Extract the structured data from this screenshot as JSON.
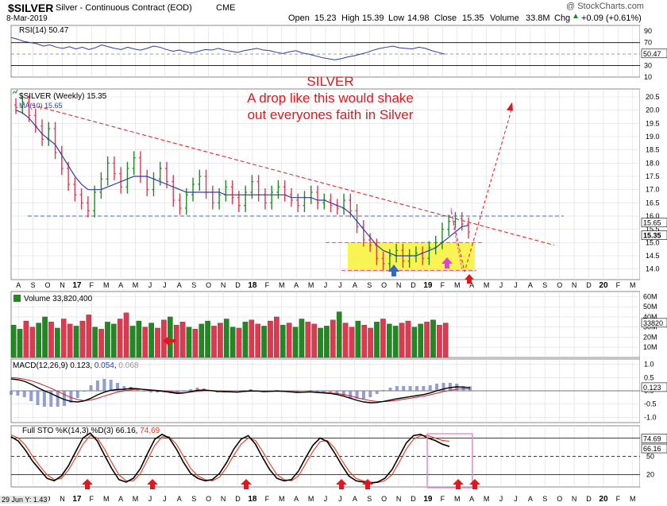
{
  "header": {
    "symbol": "$SILVER",
    "name": "Silver - Continuous Contract (EOD)",
    "exchange": "CME",
    "date": "8-Mar-2019",
    "copyright": "@ StockCharts.com",
    "open_label": "Open",
    "open": "15.23",
    "high_label": "High",
    "high": "15.39",
    "low_label": "Low",
    "low": "14.98",
    "close_label": "Close",
    "close": "15.35",
    "volume_label": "Volume",
    "volume": "33.8M",
    "chg_label": "Chg",
    "chg": "+0.09 (+0.61%)",
    "chg_arrow": "▲",
    "footer_date": "29 Jun Y: 1.43"
  },
  "annotation": {
    "line1": "SILVER",
    "line2": "A drop like this would shake",
    "line3": "out everyones faith in Silver",
    "color": "#e8141a"
  },
  "colors": {
    "up": "#1f8a1f",
    "down": "#e2374f",
    "ma": "#2a3ea8",
    "annotation_red": "#e8141a",
    "support_blue": "#3b6bcc",
    "highlight_yellow": "#f7f236",
    "magenta": "#e040e0",
    "grid": "#dcdcdc"
  },
  "chart_data": [
    {
      "panel": "rsi",
      "type": "line",
      "legend": "RSI(14) 50.47",
      "ylim": [
        10,
        100
      ],
      "yticks": [
        "90",
        "70",
        "50",
        "30",
        "10"
      ],
      "value_label": "50.47",
      "levels": [
        70,
        30
      ],
      "series": [
        {
          "values": [
            79,
            76,
            72,
            70,
            68,
            64,
            66,
            62,
            60,
            63,
            59,
            62,
            58,
            61,
            66,
            63,
            60,
            58,
            62,
            59,
            57,
            60,
            64,
            62,
            58,
            55,
            57,
            54,
            52,
            55,
            58,
            57,
            60,
            57,
            55,
            53,
            56,
            58,
            60,
            57,
            56,
            53,
            51,
            54,
            56,
            52,
            50,
            47,
            44,
            42,
            40,
            42,
            45,
            47,
            50,
            53,
            57,
            60,
            62,
            64,
            61,
            60,
            59,
            62,
            60,
            56,
            53,
            50
          ]
        }
      ]
    },
    {
      "panel": "price",
      "type": "ohlc",
      "legend_symbol": "$SILVER (Weekly) 15.35",
      "legend_ma": "MA(10) 15.65",
      "ylim": [
        13.6,
        20.8
      ],
      "yticks": [
        "20.5",
        "20.0",
        "19.5",
        "19.0",
        "18.5",
        "18.0",
        "17.5",
        "17.0",
        "16.5",
        "16.0",
        "15.5",
        "15.0",
        "14.5",
        "14.0"
      ],
      "price_labels": [
        "15.65",
        "15.35"
      ],
      "x_labels": [
        "A",
        "S",
        "O",
        "N",
        "17",
        "F",
        "M",
        "A",
        "M",
        "J",
        "J",
        "A",
        "S",
        "O",
        "N",
        "D",
        "18",
        "F",
        "M",
        "A",
        "M",
        "J",
        "J",
        "A",
        "S",
        "O",
        "N",
        "D",
        "19",
        "F",
        "M",
        "A",
        "M",
        "J",
        "J",
        "A",
        "S",
        "O",
        "N",
        "D",
        "20",
        "F",
        "M"
      ],
      "close": [
        20.1,
        20.3,
        19.8,
        19.4,
        18.9,
        19.3,
        18.4,
        17.8,
        17.2,
        16.8,
        16.5,
        16.2,
        16.9,
        17.4,
        18.0,
        17.6,
        17.1,
        17.8,
        18.2,
        17.5,
        17.0,
        17.4,
        17.8,
        17.3,
        16.6,
        16.3,
        16.8,
        17.2,
        17.5,
        16.9,
        16.5,
        16.8,
        17.1,
        16.7,
        16.4,
        16.9,
        17.3,
        16.8,
        16.5,
        16.9,
        17.1,
        16.8,
        16.6,
        16.4,
        16.7,
        16.9,
        16.5,
        16.6,
        16.4,
        16.3,
        16.6,
        16.2,
        15.6,
        15.1,
        14.9,
        14.4,
        14.2,
        14.5,
        14.7,
        14.3,
        14.5,
        14.6,
        14.4,
        14.8,
        15.0,
        15.5,
        15.8,
        15.9,
        15.7,
        15.4
      ],
      "ma": [
        20.0,
        19.9,
        19.7,
        19.4,
        19.1,
        18.9,
        18.7,
        18.3,
        17.9,
        17.5,
        17.2,
        17.0,
        17.0,
        17.0,
        17.1,
        17.2,
        17.3,
        17.4,
        17.5,
        17.5,
        17.5,
        17.4,
        17.3,
        17.2,
        17.1,
        17.0,
        16.9,
        16.9,
        16.9,
        16.9,
        16.9,
        16.9,
        16.8,
        16.8,
        16.8,
        16.8,
        16.8,
        16.8,
        16.8,
        16.8,
        16.8,
        16.8,
        16.7,
        16.7,
        16.7,
        16.7,
        16.6,
        16.6,
        16.5,
        16.4,
        16.3,
        16.1,
        15.8,
        15.5,
        15.2,
        14.9,
        14.7,
        14.6,
        14.5,
        14.5,
        14.5,
        14.5,
        14.6,
        14.7,
        14.8,
        15.0,
        15.2,
        15.4,
        15.6,
        15.65
      ],
      "support_level": 16.0
    },
    {
      "panel": "volume",
      "type": "bar",
      "legend": "Volume 33,820,400",
      "ylim": [
        0,
        65
      ],
      "yticks": [
        "60M",
        "50M",
        "40M",
        "30M",
        "20M",
        "10M"
      ],
      "value_label": "33820",
      "values": [
        32,
        28,
        36,
        30,
        34,
        40,
        35,
        29,
        38,
        33,
        31,
        36,
        42,
        30,
        28,
        35,
        33,
        38,
        44,
        31,
        36,
        30,
        34,
        29,
        37,
        40,
        32,
        35,
        30,
        28,
        33,
        36,
        31,
        34,
        38,
        30,
        29,
        35,
        37,
        33,
        31,
        36,
        40,
        32,
        34,
        30,
        38,
        35,
        33,
        29,
        31,
        37,
        45,
        34,
        30,
        36,
        32,
        29,
        35,
        38,
        33,
        31,
        34,
        36,
        30,
        33,
        35,
        37,
        32,
        34
      ]
    },
    {
      "panel": "macd",
      "type": "line",
      "legend_parts": [
        "MACD(12,26,9)",
        "0.123",
        ",",
        "0.054",
        ",",
        "0.068"
      ],
      "ylim": [
        -1.2,
        1.2
      ],
      "yticks": [
        "1.0",
        "0.5",
        "0.0",
        "-0.5",
        "-1.0"
      ],
      "value_label": "0.123",
      "series": [
        {
          "name": "MACD",
          "values": [
            0.45,
            0.42,
            0.36,
            0.25,
            0.12,
            0.0,
            -0.1,
            -0.22,
            -0.33,
            -0.4,
            -0.42,
            -0.38,
            -0.28,
            -0.15,
            -0.05,
            0.02,
            0.05,
            0.06,
            0.09,
            0.08,
            0.05,
            0.02,
            0.0,
            -0.02,
            -0.06,
            -0.1,
            -0.08,
            -0.03,
            0.02,
            0.03,
            0.01,
            -0.02,
            -0.03,
            -0.04,
            -0.05,
            -0.02,
            0.0,
            -0.01,
            -0.03,
            -0.02,
            -0.01,
            -0.02,
            -0.04,
            -0.06,
            -0.05,
            -0.04,
            -0.06,
            -0.08,
            -0.1,
            -0.14,
            -0.2,
            -0.28,
            -0.36,
            -0.42,
            -0.45,
            -0.44,
            -0.4,
            -0.35,
            -0.3,
            -0.26,
            -0.22,
            -0.18,
            -0.14,
            -0.08,
            0.0,
            0.07,
            0.12,
            0.15,
            0.14,
            0.123
          ]
        },
        {
          "name": "Signal",
          "values": [
            0.5,
            0.48,
            0.44,
            0.38,
            0.3,
            0.2,
            0.1,
            -0.02,
            -0.14,
            -0.25,
            -0.33,
            -0.37,
            -0.35,
            -0.28,
            -0.2,
            -0.12,
            -0.05,
            0.0,
            0.04,
            0.06,
            0.06,
            0.04,
            0.02,
            0.0,
            -0.03,
            -0.06,
            -0.07,
            -0.05,
            -0.02,
            0.0,
            0.01,
            0.0,
            -0.01,
            -0.03,
            -0.04,
            -0.03,
            -0.02,
            -0.01,
            -0.02,
            -0.02,
            -0.02,
            -0.02,
            -0.03,
            -0.04,
            -0.05,
            -0.05,
            -0.05,
            -0.06,
            -0.08,
            -0.1,
            -0.14,
            -0.19,
            -0.26,
            -0.32,
            -0.37,
            -0.4,
            -0.41,
            -0.39,
            -0.36,
            -0.32,
            -0.28,
            -0.24,
            -0.2,
            -0.15,
            -0.09,
            -0.03,
            0.02,
            0.06,
            0.08,
            0.068
          ]
        }
      ]
    },
    {
      "panel": "stochastic",
      "type": "line",
      "legend_parts": [
        "Full STO %K(14,3) %D(3)",
        "66.16",
        ",",
        "74.69"
      ],
      "ylim": [
        0,
        100
      ],
      "yticks": [
        "80",
        "50",
        "20"
      ],
      "value_labels": [
        "74.69",
        "66.16"
      ],
      "levels": [
        80,
        50,
        20
      ],
      "series": [
        {
          "name": "%K",
          "values": [
            82,
            75,
            60,
            42,
            28,
            14,
            10,
            18,
            35,
            58,
            80,
            88,
            75,
            52,
            30,
            12,
            8,
            14,
            30,
            55,
            78,
            86,
            80,
            62,
            40,
            22,
            14,
            10,
            12,
            22,
            40,
            62,
            78,
            84,
            70,
            48,
            28,
            14,
            10,
            12,
            26,
            48,
            68,
            80,
            74,
            56,
            36,
            18,
            10,
            8,
            6,
            8,
            14,
            28,
            50,
            72,
            84,
            86,
            80,
            76,
            70,
            66.16
          ]
        },
        {
          "name": "%D",
          "values": [
            85,
            80,
            68,
            50,
            34,
            20,
            12,
            14,
            28,
            48,
            70,
            84,
            80,
            62,
            40,
            20,
            10,
            10,
            22,
            45,
            68,
            82,
            82,
            70,
            50,
            30,
            18,
            12,
            10,
            16,
            32,
            52,
            70,
            80,
            76,
            58,
            38,
            20,
            12,
            10,
            18,
            38,
            58,
            74,
            76,
            64,
            44,
            26,
            14,
            10,
            8,
            7,
            10,
            20,
            40,
            62,
            78,
            84,
            84,
            80,
            76,
            74.69
          ]
        }
      ]
    }
  ]
}
